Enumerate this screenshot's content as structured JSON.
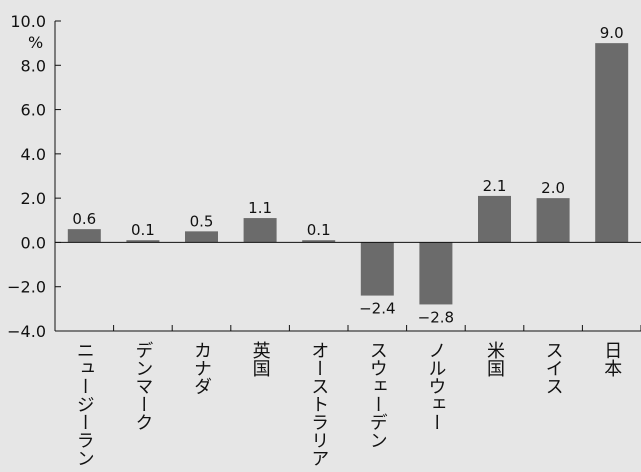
{
  "chart_data": {
    "type": "bar",
    "unit_label": "%",
    "categories": [
      "ニュージーランド",
      "デンマーク",
      "カナダ",
      "英国",
      "オーストラリア",
      "スウェーデン",
      "ノルウェー",
      "米国",
      "スイス",
      "日本"
    ],
    "values": [
      0.6,
      0.1,
      0.5,
      1.1,
      0.1,
      -2.4,
      -2.8,
      2.1,
      2.0,
      9.0
    ],
    "value_labels": [
      "0.6",
      "0.1",
      "0.5",
      "1.1",
      "0.1",
      "−2.4",
      "−2.8",
      "2.1",
      "2.0",
      "9.0"
    ],
    "y_ticks": [
      10.0,
      8.0,
      6.0,
      4.0,
      2.0,
      0.0,
      -2.0,
      -4.0
    ],
    "y_tick_labels": [
      "10.0",
      "8.0",
      "6.0",
      "4.0",
      "2.0",
      "0.0",
      "−2.0",
      "−4.0"
    ],
    "ylim": [
      -4.0,
      10.0
    ],
    "grid": false,
    "bar_color": "#6b6b6b",
    "background": "#e6e6e6"
  }
}
